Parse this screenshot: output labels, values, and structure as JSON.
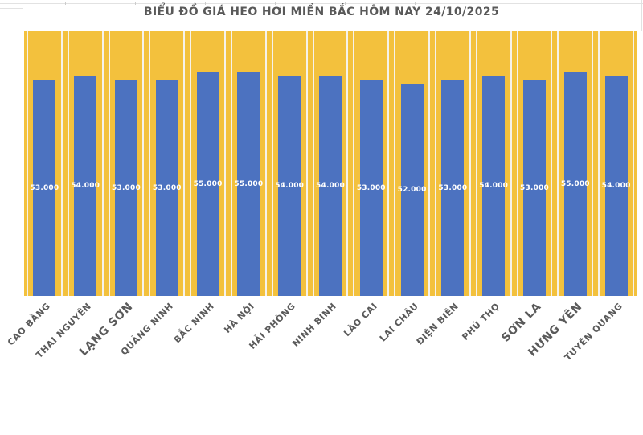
{
  "title": "BIỂU ĐỒ GIÁ HEO HƠI MIỀN BẮC HÔM NAY 24/10/2025",
  "colors": {
    "plot_background": "#F3C13D",
    "bar": "#4C72C0",
    "title_text": "#595959",
    "category_label_text": "#5A5A5A",
    "value_label_text": "#FFFFFF",
    "separator_line": "#F5F2EC",
    "gridline": "#E2E2E2"
  },
  "chart_data": {
    "type": "bar",
    "title": "BIỂU ĐỒ GIÁ HEO HƠI MIỀN BẮC HÔM NAY 24/10/2025",
    "categories": [
      "CAO BẰNG",
      "THÁI NGUYÊN",
      "LẠNG SƠN",
      "QUẢNG NINH",
      "BẮC NINH",
      "HÀ NỘI",
      "HẢI PHÒNG",
      "NINH BÌNH",
      "LÀO CAI",
      "LAI CHÂU",
      "ĐIỆN BIÊN",
      "PHÚ THỌ",
      "SƠN LA",
      "HƯNG YÊN",
      "TUYÊN QUANG"
    ],
    "values": [
      53000,
      54000,
      53000,
      53000,
      55000,
      55000,
      54000,
      54000,
      53000,
      52000,
      53000,
      54000,
      53000,
      55000,
      54000
    ],
    "value_labels": [
      "53.000",
      "54.000",
      "53.000",
      "53.000",
      "55.000",
      "55.000",
      "54.000",
      "54.000",
      "53.000",
      "52.000",
      "53.000",
      "54.000",
      "53.000",
      "55.000",
      "54.000"
    ],
    "category_label_sizes": [
      11,
      11,
      14,
      11,
      11,
      11,
      11,
      11,
      11,
      11,
      11,
      11,
      14,
      14,
      11
    ],
    "xlabel": "",
    "ylabel": "",
    "ylim": [
      0,
      65000
    ],
    "grid": false,
    "legend": false,
    "value_label_position": "center",
    "category_label_rotation_deg": 45
  }
}
